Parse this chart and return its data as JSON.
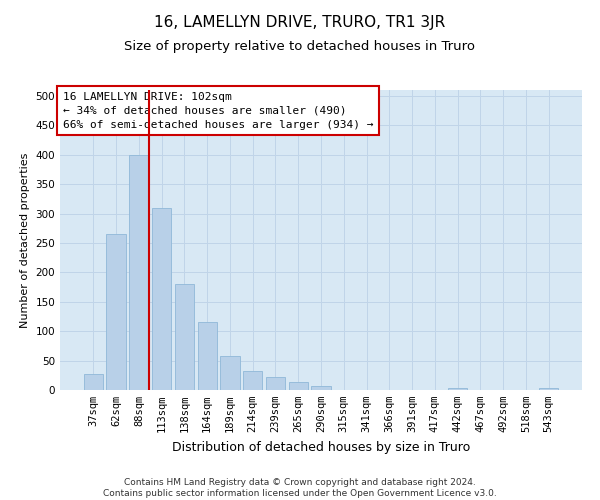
{
  "title": "16, LAMELLYN DRIVE, TRURO, TR1 3JR",
  "subtitle": "Size of property relative to detached houses in Truro",
  "xlabel": "Distribution of detached houses by size in Truro",
  "ylabel": "Number of detached properties",
  "footnote": "Contains HM Land Registry data © Crown copyright and database right 2024.\nContains public sector information licensed under the Open Government Licence v3.0.",
  "categories": [
    "37sqm",
    "62sqm",
    "88sqm",
    "113sqm",
    "138sqm",
    "164sqm",
    "189sqm",
    "214sqm",
    "239sqm",
    "265sqm",
    "290sqm",
    "315sqm",
    "341sqm",
    "366sqm",
    "391sqm",
    "417sqm",
    "442sqm",
    "467sqm",
    "492sqm",
    "518sqm",
    "543sqm"
  ],
  "values": [
    27,
    265,
    400,
    310,
    180,
    115,
    57,
    32,
    22,
    13,
    6,
    0,
    0,
    0,
    0,
    0,
    4,
    0,
    0,
    0,
    4
  ],
  "bar_color": "#b8d0e8",
  "bar_edge_color": "#90b8d8",
  "grid_color": "#c0d4e8",
  "background_color": "#d8e8f4",
  "property_line_color": "#cc0000",
  "annotation_title": "16 LAMELLYN DRIVE: 102sqm",
  "annotation_line1": "← 34% of detached houses are smaller (490)",
  "annotation_line2": "66% of semi-detached houses are larger (934) →",
  "annotation_box_facecolor": "#ffffff",
  "annotation_box_edgecolor": "#cc0000",
  "ylim": [
    0,
    510
  ],
  "yticks": [
    0,
    50,
    100,
    150,
    200,
    250,
    300,
    350,
    400,
    450,
    500
  ],
  "title_fontsize": 11,
  "subtitle_fontsize": 9.5,
  "xlabel_fontsize": 9,
  "ylabel_fontsize": 8,
  "tick_fontsize": 7.5,
  "annotation_fontsize": 8,
  "footnote_fontsize": 6.5
}
